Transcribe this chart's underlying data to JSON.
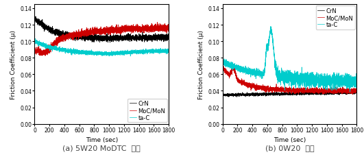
{
  "subplot_a": {
    "caption": "(a) 5W20 MoDTC  오일",
    "xlabel": "Time (sec)",
    "ylabel": "Friction Coefficient (μ)",
    "xlim": [
      0,
      1800
    ],
    "ylim": [
      0.0,
      0.145
    ],
    "yticks": [
      0.0,
      0.02,
      0.04,
      0.06,
      0.08,
      0.1,
      0.12,
      0.14
    ],
    "xticks": [
      0,
      200,
      400,
      600,
      800,
      1000,
      1200,
      1400,
      1600,
      1800
    ]
  },
  "subplot_b": {
    "caption": "(b) 0W20  오일",
    "xlabel": "Time (sec)",
    "ylabel": "Friction Coefficient (μ)",
    "xlim": [
      0,
      1800
    ],
    "ylim": [
      0.0,
      0.145
    ],
    "yticks": [
      0.0,
      0.02,
      0.04,
      0.06,
      0.08,
      0.1,
      0.12,
      0.14
    ],
    "xticks": [
      0,
      200,
      400,
      600,
      800,
      1000,
      1200,
      1400,
      1600,
      1800
    ]
  },
  "colors": {
    "CrN": "#000000",
    "MoC/MoN": "#cc0000",
    "ta-C": "#00cccc"
  },
  "bg_color": "#ffffff",
  "label_fontsize": 6.5,
  "tick_fontsize": 5.5,
  "legend_fontsize": 6,
  "caption_fontsize": 8,
  "linewidth": 0.5
}
